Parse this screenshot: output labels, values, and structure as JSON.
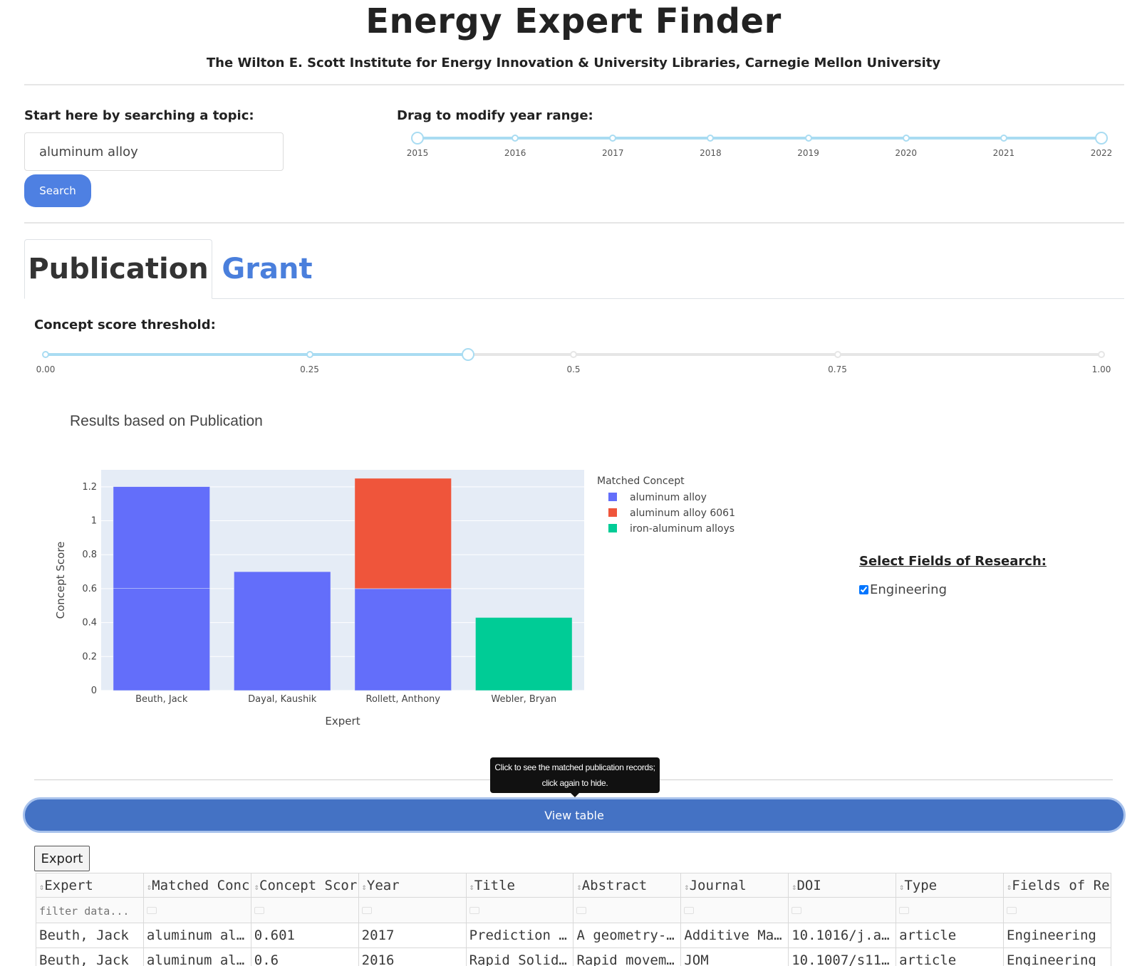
{
  "header": {
    "title": "Energy Expert Finder",
    "subtitle": "The Wilton E. Scott Institute for Energy Innovation & University Libraries, Carnegie Mellon University"
  },
  "search": {
    "label": "Start here by searching a topic:",
    "value": "aluminum alloy",
    "button_label": "Search"
  },
  "year_range": {
    "label": "Drag to modify year range:",
    "ticks": [
      "2015",
      "2016",
      "2017",
      "2018",
      "2019",
      "2020",
      "2021",
      "2022"
    ],
    "selected": [
      "2015",
      "2022"
    ]
  },
  "tabs": [
    {
      "label": "Publication",
      "active": true
    },
    {
      "label": "Grant",
      "active": false
    }
  ],
  "threshold": {
    "label": "Concept score threshold:",
    "ticks": [
      "0.00",
      "0.25",
      "0.5",
      "0.75",
      "1.00"
    ],
    "value": 0.4
  },
  "results_title": "Results based on Publication",
  "chart_data": {
    "type": "bar",
    "barmode": "stack",
    "categories": [
      "Beuth, Jack",
      "Dayal, Kaushik",
      "Rollett, Anthony",
      "Webler, Bryan"
    ],
    "series": [
      {
        "name": "aluminum alloy",
        "color": "#636efa",
        "segments": [
          [
            0.601,
            0.6
          ],
          [
            0.7
          ],
          [
            0.6
          ],
          []
        ]
      },
      {
        "name": "aluminum alloy 6061",
        "color": "#ef553b",
        "segments": [
          [],
          [],
          [
            0.65
          ],
          []
        ]
      },
      {
        "name": "iron-aluminum alloys",
        "color": "#00cc96",
        "segments": [
          [],
          [],
          [],
          [
            0.43
          ]
        ]
      }
    ],
    "xlabel": "Expert",
    "ylabel": "Concept Score",
    "ylim": [
      0,
      1.3
    ],
    "yticks": [
      0,
      0.2,
      0.4,
      0.6,
      0.8,
      1,
      1.2
    ],
    "legend_title": "Matched Concept",
    "legend_position": "right",
    "grid": true
  },
  "fields": {
    "title": "Select Fields of Research:",
    "options": [
      {
        "label": "Engineering",
        "checked": true
      }
    ]
  },
  "tooltip": "Click to see the matched publication records; click again to hide.",
  "view_table_label": "View table",
  "export_label": "Export",
  "table": {
    "columns": [
      "Expert",
      "Matched Conc",
      "Concept Scor",
      "Year",
      "Title",
      "Abstract",
      "Journal",
      "DOI",
      "Type",
      "Fields of Re"
    ],
    "filter_placeholder": "filter data...",
    "rows": [
      [
        "Beuth, Jack",
        "aluminum al…",
        "0.601",
        "2017",
        "Prediction …",
        "A geometry-…",
        "Additive Ma…",
        "10.1016/j.a…",
        "article",
        "Engineering"
      ],
      [
        "Beuth, Jack",
        "aluminum al…",
        "0.6",
        "2016",
        "Rapid Solid…",
        "Rapid movem…",
        "JOM",
        "10.1007/s11…",
        "article",
        "Engineering"
      ]
    ]
  },
  "colors": {
    "accent": "#4e80e2",
    "view_button": "#4472c4",
    "slider_active": "#a9dcf2",
    "slider_inactive": "#e6e6e6",
    "plot_bg": "#e5ecf6"
  }
}
